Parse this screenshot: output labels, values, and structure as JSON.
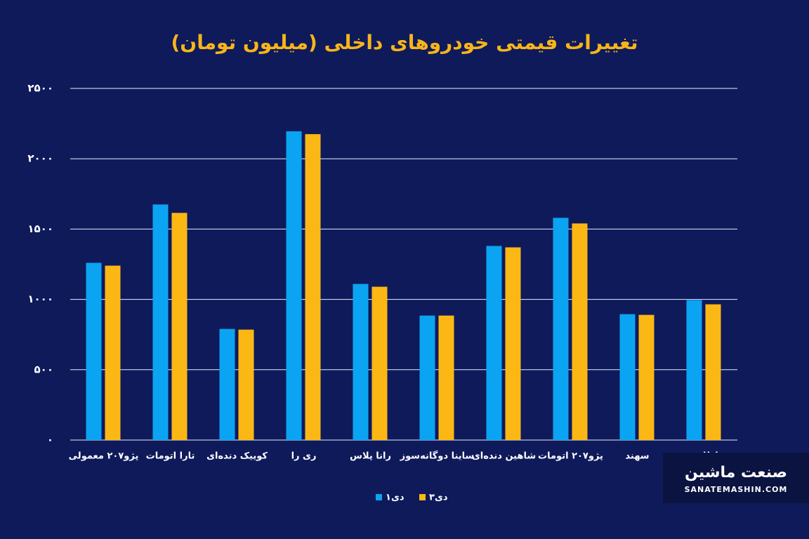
{
  "chart_data": {
    "type": "bar",
    "title": "تغییرات قیمتی خودروهای داخلی (میلیون تومان)",
    "categories": [
      "پژو۲۰۷ معمولی",
      "تارا اتومات",
      "کوییک دنده‌ای",
      "ری را",
      "رانا پلاس",
      "ساینا دوگانه‌سوز",
      "شاهین دنده‌ای",
      "پژو۲۰۷ اتومات",
      "سهند",
      "اطلس"
    ],
    "series": [
      {
        "name": "۱دی",
        "color": "#0ba4f2",
        "values": [
          1260,
          1675,
          790,
          2195,
          1110,
          885,
          1380,
          1580,
          895,
          995
        ]
      },
      {
        "name": "۳دی",
        "color": "#fbb814",
        "values": [
          1240,
          1615,
          785,
          2175,
          1090,
          885,
          1370,
          1540,
          890,
          965
        ]
      }
    ],
    "ylim": [
      0,
      2500
    ],
    "yticks": [
      {
        "value": 0,
        "label": "۰"
      },
      {
        "value": 500,
        "label": "۵۰۰"
      },
      {
        "value": 1000,
        "label": "۱۰۰۰"
      },
      {
        "value": 1500,
        "label": "۱۵۰۰"
      },
      {
        "value": 2000,
        "label": "۲۰۰۰"
      },
      {
        "value": 2500,
        "label": "۲۵۰۰"
      }
    ],
    "grid": true,
    "legend": "bottom"
  },
  "logo": {
    "brand": "صنعت ماشین",
    "site": "SANATEMASHIN.COM"
  }
}
